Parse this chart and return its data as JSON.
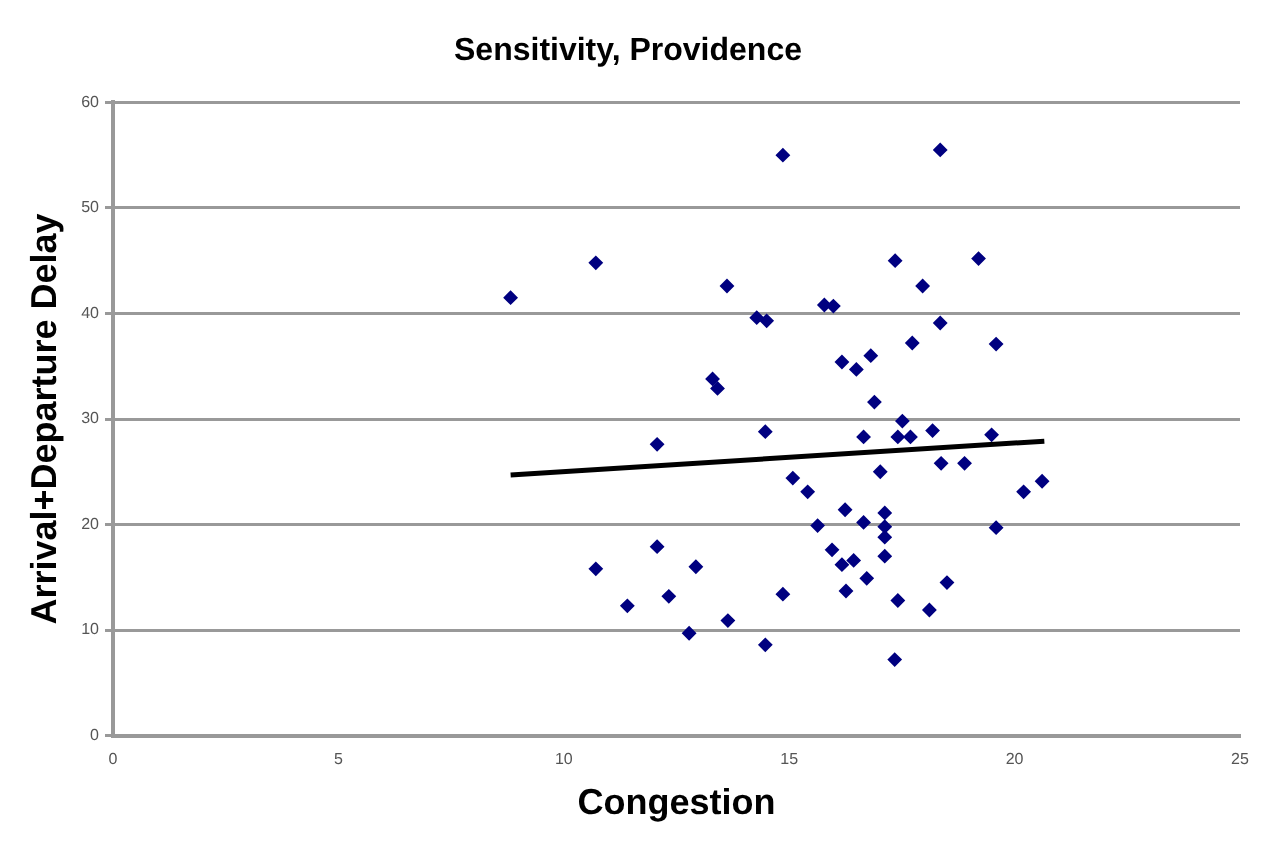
{
  "chart_data": {
    "type": "scatter",
    "title": "Sensitivity, Providence",
    "xlabel": "Congestion",
    "ylabel": "Arrival+Departure Delay",
    "xlim": [
      0,
      25
    ],
    "xticks": [
      0,
      5,
      10,
      15,
      20,
      25
    ],
    "ylim": [
      0,
      60
    ],
    "yticks": [
      0,
      10,
      20,
      30,
      40,
      50,
      60
    ],
    "grid": "y",
    "legend": false,
    "marker": "diamond",
    "series": [
      {
        "color": "#000080",
        "x": [
          14.86,
          10.71,
          8.82,
          13.62,
          14.28,
          14.5,
          15.78,
          15.98,
          16.17,
          13.3,
          13.41,
          12.07,
          14.47,
          15.08,
          15.41,
          15.63,
          15.95,
          16.17,
          16.24,
          16.26,
          12.07,
          10.71,
          12.93,
          12.33,
          11.41,
          14.86,
          12.78,
          13.64,
          14.47,
          18.35,
          17.35,
          19.2,
          17.96,
          18.35,
          17.73,
          19.59,
          16.49,
          16.81,
          16.89,
          17.51,
          16.65,
          17.41,
          17.69,
          18.18,
          19.49,
          18.37,
          18.89,
          17.02,
          20.2,
          20.61,
          16.65,
          17.12,
          17.12,
          17.12,
          19.59,
          16.43,
          17.12,
          16.72,
          18.5,
          17.41,
          18.11,
          17.34
        ],
        "values": [
          55,
          44.8,
          41.5,
          42.6,
          39.6,
          39.3,
          40.8,
          40.7,
          35.4,
          33.8,
          32.9,
          27.6,
          28.8,
          24.4,
          23.1,
          19.9,
          17.6,
          16.2,
          21.4,
          13.7,
          17.9,
          15.8,
          16,
          13.2,
          12.3,
          13.4,
          9.7,
          10.9,
          8.6,
          55.5,
          45,
          45.2,
          42.6,
          39.1,
          37.2,
          37.1,
          34.7,
          36,
          31.6,
          29.8,
          28.3,
          28.3,
          28.3,
          28.9,
          28.5,
          25.8,
          25.8,
          25,
          23.1,
          24.1,
          20.2,
          21.1,
          19.8,
          18.8,
          19.7,
          16.6,
          17,
          14.9,
          14.5,
          12.8,
          11.9,
          7.2
        ]
      },
      {
        "type": "line",
        "color": "#000000",
        "marker": "none",
        "x": [
          8.82,
          20.66
        ],
        "values": [
          24.7,
          27.9
        ]
      }
    ]
  }
}
